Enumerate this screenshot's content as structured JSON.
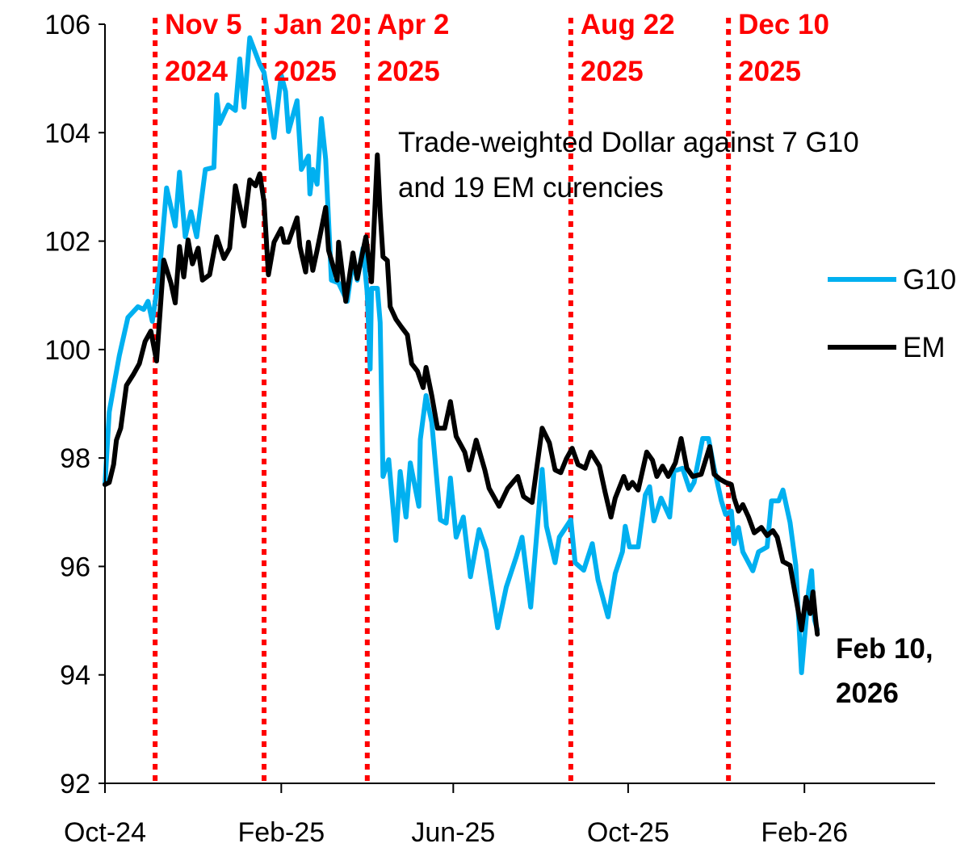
{
  "chart_data": {
    "type": "line",
    "title": "",
    "xlabel": "",
    "ylabel": "",
    "ylim": [
      92,
      106
    ],
    "yticks": [
      "92",
      "94",
      "96",
      "98",
      "100",
      "102",
      "104",
      "106"
    ],
    "xlim": [
      "2024-10-01",
      "2026-02-28"
    ],
    "xticks": [
      {
        "date": "2024-10-01",
        "label": "Oct-24"
      },
      {
        "date": "2025-02-01",
        "label": "Feb-25"
      },
      {
        "date": "2025-06-01",
        "label": "Jun-25"
      },
      {
        "date": "2025-10-01",
        "label": "Oct-25"
      },
      {
        "date": "2026-02-01",
        "label": "Feb-26"
      }
    ],
    "grid": false,
    "legend_position": "right",
    "annotation": [
      "Trade-weighted Dollar against 7 G10",
      "and 19 EM curencies"
    ],
    "end_label": [
      "Feb 10,",
      "2026"
    ],
    "events": [
      {
        "date": "2024-11-05",
        "label": [
          "Nov 5",
          "2024"
        ]
      },
      {
        "date": "2025-01-20",
        "label": [
          "Jan 20",
          "2025"
        ]
      },
      {
        "date": "2025-04-02",
        "label": [
          "Apr 2",
          "2025"
        ]
      },
      {
        "date": "2025-08-22",
        "label": [
          "Aug 22",
          "2025"
        ]
      },
      {
        "date": "2025-12-10",
        "label": [
          "Dec 10",
          "2025"
        ]
      }
    ],
    "event_color": "#ff0000",
    "series": [
      {
        "name": "G10",
        "color": "#00b0f0",
        "points": [
          [
            "2024-10-01",
            97.51
          ],
          [
            "2024-10-04",
            98.85
          ],
          [
            "2024-10-08",
            99.45
          ],
          [
            "2024-10-11",
            99.89
          ],
          [
            "2024-10-17",
            100.59
          ],
          [
            "2024-10-24",
            100.79
          ],
          [
            "2024-10-28",
            100.74
          ],
          [
            "2024-10-31",
            100.89
          ],
          [
            "2024-11-03",
            100.52
          ],
          [
            "2024-11-08",
            101.41
          ],
          [
            "2024-11-13",
            102.98
          ],
          [
            "2024-11-19",
            102.28
          ],
          [
            "2024-11-22",
            103.27
          ],
          [
            "2024-11-26",
            102.08
          ],
          [
            "2024-11-30",
            102.54
          ],
          [
            "2024-12-04",
            102.08
          ],
          [
            "2024-12-10",
            103.32
          ],
          [
            "2024-12-16",
            103.36
          ],
          [
            "2024-12-18",
            104.7
          ],
          [
            "2024-12-20",
            104.17
          ],
          [
            "2024-12-26",
            104.51
          ],
          [
            "2024-12-31",
            104.41
          ],
          [
            "2025-01-03",
            105.36
          ],
          [
            "2025-01-06",
            104.47
          ],
          [
            "2025-01-10",
            105.75
          ],
          [
            "2025-01-17",
            105.26
          ],
          [
            "2025-01-20",
            105.11
          ],
          [
            "2025-01-23",
            104.61
          ],
          [
            "2025-01-27",
            103.91
          ],
          [
            "2025-02-01",
            105.06
          ],
          [
            "2025-02-04",
            104.76
          ],
          [
            "2025-02-06",
            104.02
          ],
          [
            "2025-02-12",
            104.59
          ],
          [
            "2025-02-15",
            103.32
          ],
          [
            "2025-02-20",
            103.57
          ],
          [
            "2025-02-21",
            102.87
          ],
          [
            "2025-02-23",
            103.32
          ],
          [
            "2025-02-26",
            103.05
          ],
          [
            "2025-03-01",
            104.26
          ],
          [
            "2025-03-04",
            103.51
          ],
          [
            "2025-03-08",
            101.28
          ],
          [
            "2025-03-13",
            101.23
          ],
          [
            "2025-03-19",
            100.89
          ],
          [
            "2025-03-23",
            101.64
          ],
          [
            "2025-03-26",
            101.28
          ],
          [
            "2025-03-30",
            101.87
          ],
          [
            "2025-04-02",
            101.04
          ],
          [
            "2025-04-04",
            99.64
          ],
          [
            "2025-04-05",
            101.13
          ],
          [
            "2025-04-09",
            101.13
          ],
          [
            "2025-04-11",
            100.5
          ],
          [
            "2025-04-13",
            97.66
          ],
          [
            "2025-04-17",
            97.97
          ],
          [
            "2025-04-22",
            96.48
          ],
          [
            "2025-04-25",
            97.75
          ],
          [
            "2025-04-29",
            96.91
          ],
          [
            "2025-05-02",
            97.91
          ],
          [
            "2025-05-08",
            97.11
          ],
          [
            "2025-05-09",
            98.34
          ],
          [
            "2025-05-13",
            99.15
          ],
          [
            "2025-05-17",
            98.66
          ],
          [
            "2025-05-23",
            96.86
          ],
          [
            "2025-05-27",
            96.8
          ],
          [
            "2025-05-30",
            97.63
          ],
          [
            "2025-06-03",
            96.54
          ],
          [
            "2025-06-08",
            96.91
          ],
          [
            "2025-06-13",
            95.81
          ],
          [
            "2025-06-19",
            96.68
          ],
          [
            "2025-06-24",
            96.3
          ],
          [
            "2025-07-02",
            94.87
          ],
          [
            "2025-07-08",
            95.62
          ],
          [
            "2025-07-15",
            96.18
          ],
          [
            "2025-07-19",
            96.54
          ],
          [
            "2025-07-25",
            95.25
          ],
          [
            "2025-08-02",
            97.79
          ],
          [
            "2025-08-05",
            96.74
          ],
          [
            "2025-08-11",
            96.07
          ],
          [
            "2025-08-14",
            96.54
          ],
          [
            "2025-08-22",
            96.86
          ],
          [
            "2025-08-25",
            96.07
          ],
          [
            "2025-08-31",
            95.93
          ],
          [
            "2025-09-06",
            96.42
          ],
          [
            "2025-09-10",
            95.75
          ],
          [
            "2025-09-17",
            95.07
          ],
          [
            "2025-09-22",
            95.87
          ],
          [
            "2025-09-27",
            96.27
          ],
          [
            "2025-09-29",
            96.74
          ],
          [
            "2025-10-02",
            96.36
          ],
          [
            "2025-10-08",
            96.36
          ],
          [
            "2025-10-13",
            97.32
          ],
          [
            "2025-10-16",
            97.47
          ],
          [
            "2025-10-19",
            96.84
          ],
          [
            "2025-10-24",
            97.26
          ],
          [
            "2025-10-30",
            96.91
          ],
          [
            "2025-11-02",
            97.76
          ],
          [
            "2025-11-08",
            97.81
          ],
          [
            "2025-11-13",
            97.41
          ],
          [
            "2025-11-16",
            97.55
          ],
          [
            "2025-11-22",
            98.36
          ],
          [
            "2025-11-26",
            98.36
          ],
          [
            "2025-11-30",
            97.81
          ],
          [
            "2025-12-05",
            97.21
          ],
          [
            "2025-12-08",
            96.96
          ],
          [
            "2025-12-12",
            97.02
          ],
          [
            "2025-12-14",
            96.42
          ],
          [
            "2025-12-17",
            96.72
          ],
          [
            "2025-12-20",
            96.27
          ],
          [
            "2025-12-27",
            95.92
          ],
          [
            "2025-12-31",
            96.27
          ],
          [
            "2026-01-06",
            96.36
          ],
          [
            "2026-01-09",
            97.21
          ],
          [
            "2026-01-14",
            97.21
          ],
          [
            "2026-01-17",
            97.41
          ],
          [
            "2026-01-22",
            96.81
          ],
          [
            "2026-01-26",
            96.02
          ],
          [
            "2026-01-30",
            94.04
          ],
          [
            "2026-02-04",
            95.57
          ],
          [
            "2026-02-06",
            95.92
          ],
          [
            "2026-02-08",
            95.02
          ],
          [
            "2026-02-10",
            94.83
          ]
        ]
      },
      {
        "name": "EM",
        "color": "#000000",
        "points": [
          [
            "2024-10-01",
            97.51
          ],
          [
            "2024-10-04",
            97.55
          ],
          [
            "2024-10-07",
            97.88
          ],
          [
            "2024-10-09",
            98.33
          ],
          [
            "2024-10-12",
            98.55
          ],
          [
            "2024-10-16",
            99.34
          ],
          [
            "2024-10-21",
            99.55
          ],
          [
            "2024-10-25",
            99.74
          ],
          [
            "2024-10-29",
            100.15
          ],
          [
            "2024-11-02",
            100.34
          ],
          [
            "2024-11-06",
            99.79
          ],
          [
            "2024-11-11",
            101.65
          ],
          [
            "2024-11-16",
            101.23
          ],
          [
            "2024-11-19",
            100.86
          ],
          [
            "2024-11-22",
            101.9
          ],
          [
            "2024-11-25",
            101.34
          ],
          [
            "2024-11-28",
            102.02
          ],
          [
            "2024-12-01",
            101.58
          ],
          [
            "2024-12-05",
            101.87
          ],
          [
            "2024-12-08",
            101.28
          ],
          [
            "2024-12-13",
            101.38
          ],
          [
            "2024-12-18",
            102.08
          ],
          [
            "2024-12-23",
            101.68
          ],
          [
            "2024-12-27",
            101.87
          ],
          [
            "2024-12-31",
            103.02
          ],
          [
            "2025-01-06",
            102.28
          ],
          [
            "2025-01-10",
            103.13
          ],
          [
            "2025-01-14",
            103.02
          ],
          [
            "2025-01-17",
            103.24
          ],
          [
            "2025-01-20",
            102.72
          ],
          [
            "2025-01-23",
            101.38
          ],
          [
            "2025-01-27",
            101.98
          ],
          [
            "2025-02-01",
            102.23
          ],
          [
            "2025-02-03",
            101.98
          ],
          [
            "2025-02-06",
            101.98
          ],
          [
            "2025-02-12",
            102.43
          ],
          [
            "2025-02-14",
            101.9
          ],
          [
            "2025-02-18",
            101.43
          ],
          [
            "2025-02-20",
            101.98
          ],
          [
            "2025-02-23",
            101.46
          ],
          [
            "2025-02-26",
            101.83
          ],
          [
            "2025-03-04",
            102.62
          ],
          [
            "2025-03-06",
            101.83
          ],
          [
            "2025-03-12",
            101.28
          ],
          [
            "2025-03-13",
            101.98
          ],
          [
            "2025-03-18",
            100.89
          ],
          [
            "2025-03-23",
            101.78
          ],
          [
            "2025-03-26",
            101.31
          ],
          [
            "2025-04-01",
            102.08
          ],
          [
            "2025-04-05",
            101.25
          ],
          [
            "2025-04-09",
            103.59
          ],
          [
            "2025-04-11",
            102.53
          ],
          [
            "2025-04-13",
            101.71
          ],
          [
            "2025-04-16",
            101.64
          ],
          [
            "2025-04-18",
            100.79
          ],
          [
            "2025-04-22",
            100.56
          ],
          [
            "2025-04-26",
            100.41
          ],
          [
            "2025-04-30",
            100.27
          ],
          [
            "2025-05-03",
            99.74
          ],
          [
            "2025-05-07",
            99.6
          ],
          [
            "2025-05-11",
            99.3
          ],
          [
            "2025-05-13",
            99.67
          ],
          [
            "2025-05-17",
            99.15
          ],
          [
            "2025-05-21",
            98.55
          ],
          [
            "2025-05-26",
            98.55
          ],
          [
            "2025-05-30",
            99.04
          ],
          [
            "2025-06-03",
            98.4
          ],
          [
            "2025-06-09",
            98.11
          ],
          [
            "2025-06-12",
            97.78
          ],
          [
            "2025-06-17",
            98.33
          ],
          [
            "2025-06-23",
            97.78
          ],
          [
            "2025-06-26",
            97.44
          ],
          [
            "2025-07-03",
            97.11
          ],
          [
            "2025-07-09",
            97.44
          ],
          [
            "2025-07-16",
            97.66
          ],
          [
            "2025-07-20",
            97.29
          ],
          [
            "2025-07-26",
            97.18
          ],
          [
            "2025-08-02",
            98.55
          ],
          [
            "2025-08-07",
            98.28
          ],
          [
            "2025-08-11",
            97.78
          ],
          [
            "2025-08-15",
            97.73
          ],
          [
            "2025-08-19",
            97.99
          ],
          [
            "2025-08-23",
            98.18
          ],
          [
            "2025-08-27",
            97.88
          ],
          [
            "2025-09-01",
            97.81
          ],
          [
            "2025-09-05",
            98.11
          ],
          [
            "2025-09-11",
            97.85
          ],
          [
            "2025-09-15",
            97.36
          ],
          [
            "2025-09-19",
            96.91
          ],
          [
            "2025-09-22",
            97.26
          ],
          [
            "2025-09-28",
            97.66
          ],
          [
            "2025-10-01",
            97.44
          ],
          [
            "2025-10-04",
            97.55
          ],
          [
            "2025-10-08",
            97.41
          ],
          [
            "2025-10-14",
            98.11
          ],
          [
            "2025-10-18",
            97.96
          ],
          [
            "2025-10-21",
            97.66
          ],
          [
            "2025-10-25",
            97.85
          ],
          [
            "2025-10-29",
            97.66
          ],
          [
            "2025-11-03",
            97.91
          ],
          [
            "2025-11-07",
            98.36
          ],
          [
            "2025-11-11",
            97.81
          ],
          [
            "2025-11-15",
            97.66
          ],
          [
            "2025-11-21",
            97.7
          ],
          [
            "2025-11-27",
            98.21
          ],
          [
            "2025-11-30",
            97.7
          ],
          [
            "2025-12-04",
            97.61
          ],
          [
            "2025-12-08",
            97.55
          ],
          [
            "2025-12-12",
            97.51
          ],
          [
            "2025-12-14",
            97.26
          ],
          [
            "2025-12-17",
            97.02
          ],
          [
            "2025-12-20",
            97.14
          ],
          [
            "2025-12-24",
            96.91
          ],
          [
            "2025-12-28",
            96.62
          ],
          [
            "2026-01-02",
            96.72
          ],
          [
            "2026-01-06",
            96.57
          ],
          [
            "2026-01-10",
            96.66
          ],
          [
            "2026-01-13",
            96.54
          ],
          [
            "2026-01-17",
            96.09
          ],
          [
            "2026-01-22",
            96.02
          ],
          [
            "2026-01-26",
            95.43
          ],
          [
            "2026-01-30",
            94.83
          ],
          [
            "2026-02-02",
            95.43
          ],
          [
            "2026-02-05",
            95.13
          ],
          [
            "2026-02-07",
            95.53
          ],
          [
            "2026-02-09",
            94.98
          ],
          [
            "2026-02-10",
            94.75
          ]
        ]
      }
    ]
  }
}
